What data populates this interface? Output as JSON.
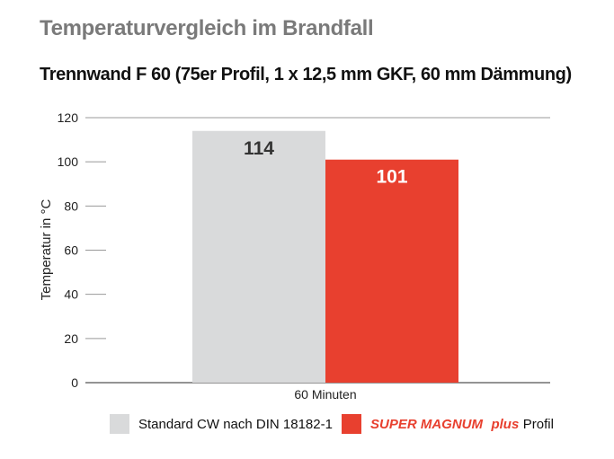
{
  "chart_data": {
    "type": "bar",
    "title": "Temperaturvergleich im Brandfall",
    "subtitle": "Trennwand F 60 (75er Profil, 1 x 12,5 mm GKF, 60 mm Dämmung)",
    "xlabel": "",
    "ylabel": "Temperatur in °C",
    "categories": [
      "60 Minuten"
    ],
    "ylim": [
      0,
      120
    ],
    "yticks": [
      0,
      20,
      40,
      60,
      80,
      100,
      120
    ],
    "grid": true,
    "legend_position": "bottom",
    "series": [
      {
        "name": "Standard CW nach DIN 18182-1",
        "values": [
          114
        ],
        "color": "#d9dadb",
        "label_color": "#333333"
      },
      {
        "name": "SUPER MAGNUM plus Profil",
        "brand": "SUPER MAGNUM",
        "brand_suffix": "plus",
        "suffix": " Profil",
        "values": [
          101
        ],
        "color": "#e8402f",
        "label_color": "#ffffff"
      }
    ]
  }
}
